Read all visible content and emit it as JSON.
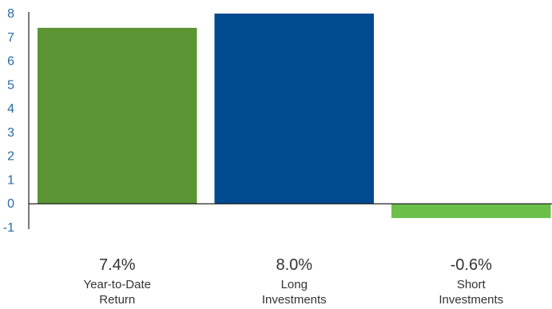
{
  "chart_data": {
    "type": "bar",
    "categories": [
      "Year-to-Date Return",
      "Long Investments",
      "Short Investments"
    ],
    "category_lines": [
      [
        "Year-to-Date",
        "Return"
      ],
      [
        "Long",
        "Investments"
      ],
      [
        "Short",
        "Investments"
      ]
    ],
    "values": [
      7.4,
      8.0,
      -0.6
    ],
    "value_labels": [
      "7.4%",
      "8.0%",
      "-0.6%"
    ],
    "colors": [
      "#5a9433",
      "#004a8f",
      "#6cc04a"
    ],
    "title": "",
    "xlabel": "",
    "ylabel": "",
    "ylim": [
      -1,
      8
    ],
    "yticks": [
      "-1",
      "0",
      "1",
      "2",
      "3",
      "4",
      "5",
      "6",
      "7",
      "8"
    ],
    "grid": false,
    "legend": "none"
  }
}
